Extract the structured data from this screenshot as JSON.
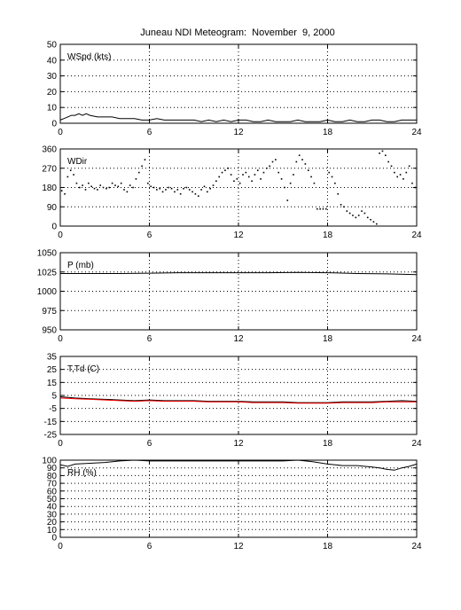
{
  "title": "Juneau NDI Meteogram:  November  9, 2000",
  "x_ticks": [
    "0",
    "6",
    "12",
    "18",
    "24"
  ],
  "colors": {
    "axis": "#000000",
    "grid": "#000000",
    "dewpoint": "#ff0000",
    "series": "#000000"
  },
  "chart_data": [
    {
      "type": "line",
      "label": "WSpd (kts)",
      "xlim": [
        0,
        24
      ],
      "ylim": [
        0,
        50
      ],
      "yticks": [
        "0",
        "10",
        "20",
        "30",
        "40",
        "50"
      ],
      "grid": true,
      "series": [
        {
          "x": [
            0,
            0.25,
            0.5,
            0.75,
            1,
            1.25,
            1.5,
            1.75,
            2,
            2.5,
            3,
            3.5,
            4,
            4.5,
            5,
            5.5,
            6,
            6.5,
            7,
            7.5,
            8,
            8.5,
            9,
            9.5,
            10,
            10.5,
            11,
            11.5,
            12,
            12.5,
            13,
            13.5,
            14,
            14.5,
            15,
            15.5,
            16,
            16.5,
            17,
            17.5,
            18,
            18.5,
            19,
            19.5,
            20,
            20.5,
            21,
            21.5,
            22,
            22.5,
            23,
            23.5,
            24
          ],
          "values": [
            2,
            3,
            4,
            5,
            5,
            6,
            5,
            6,
            5,
            4,
            4,
            4,
            3,
            3,
            3,
            2,
            2,
            3,
            2,
            2,
            2,
            2,
            2,
            1,
            2,
            1,
            2,
            1,
            2,
            2,
            1,
            1,
            2,
            1,
            1,
            1,
            2,
            1,
            1,
            1,
            2,
            1,
            1,
            2,
            1,
            1,
            2,
            2,
            1,
            1,
            2,
            2,
            2
          ]
        }
      ]
    },
    {
      "type": "scatter",
      "label": "WDir",
      "xlim": [
        0,
        24
      ],
      "ylim": [
        0,
        360
      ],
      "yticks": [
        "0",
        "90",
        "180",
        "270",
        "360"
      ],
      "grid": true,
      "series": [
        {
          "x": [
            0.1,
            0.3,
            0.5,
            0.7,
            0.9,
            1.1,
            1.3,
            1.5,
            1.7,
            1.9,
            2.1,
            2.3,
            2.5,
            2.7,
            2.9,
            3.1,
            3.3,
            3.5,
            3.7,
            3.9,
            4.1,
            4.3,
            4.5,
            4.7,
            4.9,
            5.1,
            5.3,
            5.5,
            5.7,
            5.9,
            6.1,
            6.3,
            6.5,
            6.7,
            6.9,
            7.1,
            7.3,
            7.5,
            7.7,
            7.9,
            8.1,
            8.3,
            8.5,
            8.7,
            8.9,
            9.1,
            9.3,
            9.5,
            9.7,
            9.9,
            10.1,
            10.3,
            10.5,
            10.7,
            10.9,
            11.1,
            11.3,
            11.5,
            11.7,
            11.9,
            12.1,
            12.3,
            12.5,
            12.7,
            12.9,
            13.1,
            13.3,
            13.5,
            13.7,
            13.9,
            14.1,
            14.3,
            14.5,
            14.7,
            14.9,
            15.1,
            15.3,
            15.5,
            15.7,
            15.9,
            16.1,
            16.3,
            16.5,
            16.7,
            16.9,
            17.1,
            17.3,
            17.5,
            17.7,
            17.9,
            18.1,
            18.3,
            18.5,
            18.7,
            18.9,
            19.1,
            19.3,
            19.5,
            19.7,
            19.9,
            20.1,
            20.3,
            20.5,
            20.7,
            20.9,
            21.1,
            21.3,
            21.5,
            21.7,
            21.9,
            22.1,
            22.3,
            22.5,
            22.7,
            22.9,
            23.1,
            23.3,
            23.5,
            23.7,
            23.9
          ],
          "values": [
            165,
            150,
            230,
            260,
            240,
            200,
            180,
            190,
            170,
            200,
            185,
            175,
            170,
            190,
            180,
            175,
            180,
            200,
            190,
            185,
            200,
            170,
            160,
            190,
            180,
            220,
            250,
            280,
            310,
            200,
            185,
            180,
            170,
            175,
            160,
            170,
            180,
            175,
            160,
            170,
            150,
            175,
            180,
            170,
            160,
            150,
            140,
            170,
            185,
            160,
            175,
            190,
            210,
            230,
            250,
            260,
            270,
            240,
            210,
            220,
            200,
            240,
            250,
            230,
            210,
            240,
            260,
            220,
            250,
            270,
            280,
            300,
            310,
            250,
            220,
            180,
            120,
            200,
            240,
            300,
            330,
            310,
            290,
            260,
            230,
            200,
            80,
            80,
            80,
            80,
            250,
            230,
            200,
            150,
            100,
            90,
            70,
            60,
            50,
            40,
            50,
            70,
            60,
            40,
            30,
            20,
            10,
            340,
            350,
            330,
            300,
            280,
            250,
            230,
            240,
            220,
            250,
            280,
            200,
            180
          ]
        }
      ]
    },
    {
      "type": "line",
      "label": "P (mb)",
      "xlim": [
        0,
        24
      ],
      "ylim": [
        950,
        1050
      ],
      "yticks": [
        "950",
        "975",
        "1000",
        "1025",
        "1050"
      ],
      "grid": true,
      "series": [
        {
          "x": [
            0,
            2,
            4,
            6,
            8,
            10,
            12,
            14,
            16,
            18,
            20,
            22,
            24
          ],
          "values": [
            1023,
            1023,
            1023,
            1023.5,
            1024,
            1024,
            1024,
            1024,
            1024.5,
            1024,
            1023,
            1022.5,
            1021.5
          ]
        }
      ]
    },
    {
      "type": "line",
      "label": "T,Td (C)",
      "xlim": [
        0,
        24
      ],
      "ylim": [
        -25,
        35
      ],
      "yticks": [
        "-25",
        "-15",
        "-5",
        "5",
        "15",
        "25",
        "35"
      ],
      "grid": true,
      "series": [
        {
          "name": "T",
          "x": [
            0,
            1,
            2,
            3,
            4,
            5,
            6,
            7,
            8,
            9,
            10,
            11,
            12,
            13,
            14,
            15,
            16,
            17,
            18,
            19,
            20,
            21,
            22,
            23,
            24
          ],
          "values": [
            4,
            3,
            2.5,
            2,
            1.5,
            1,
            1.5,
            1,
            1,
            1,
            0.5,
            0.5,
            0.5,
            0,
            0,
            0,
            -0.5,
            -0.5,
            -0.5,
            0,
            0,
            0,
            0.5,
            1,
            0.5
          ]
        },
        {
          "name": "Td",
          "x": [
            0,
            1,
            2,
            3,
            4,
            5,
            6,
            7,
            8,
            9,
            10,
            11,
            12,
            13,
            14,
            15,
            16,
            17,
            18,
            19,
            20,
            21,
            22,
            23,
            24
          ],
          "values": [
            3,
            2.5,
            2,
            1.5,
            1,
            0.5,
            1,
            0.5,
            0.5,
            0.5,
            0,
            0,
            0,
            -0.5,
            -0.5,
            -0.5,
            -1,
            -1,
            -1,
            -0.5,
            -0.5,
            -0.5,
            0,
            0,
            0
          ]
        }
      ]
    },
    {
      "type": "line",
      "label": "RH (%)",
      "xlim": [
        0,
        24
      ],
      "ylim": [
        0,
        100
      ],
      "yticks": [
        "0",
        "10",
        "20",
        "30",
        "40",
        "50",
        "60",
        "70",
        "80",
        "90",
        "100"
      ],
      "grid": true,
      "series": [
        {
          "x": [
            0,
            0.5,
            1,
            2,
            3,
            4,
            5,
            6,
            7,
            8,
            9,
            10,
            11,
            12,
            13,
            14,
            15,
            16,
            17,
            18,
            19,
            20,
            21,
            21.5,
            22,
            22.5,
            23,
            23.5,
            24
          ],
          "values": [
            94,
            92,
            95,
            96,
            97,
            99,
            100,
            99,
            99,
            99,
            99,
            99,
            99,
            99,
            99,
            99,
            99,
            100,
            98,
            95,
            93,
            93,
            91,
            90,
            88,
            87,
            90,
            92,
            95
          ]
        }
      ]
    }
  ]
}
